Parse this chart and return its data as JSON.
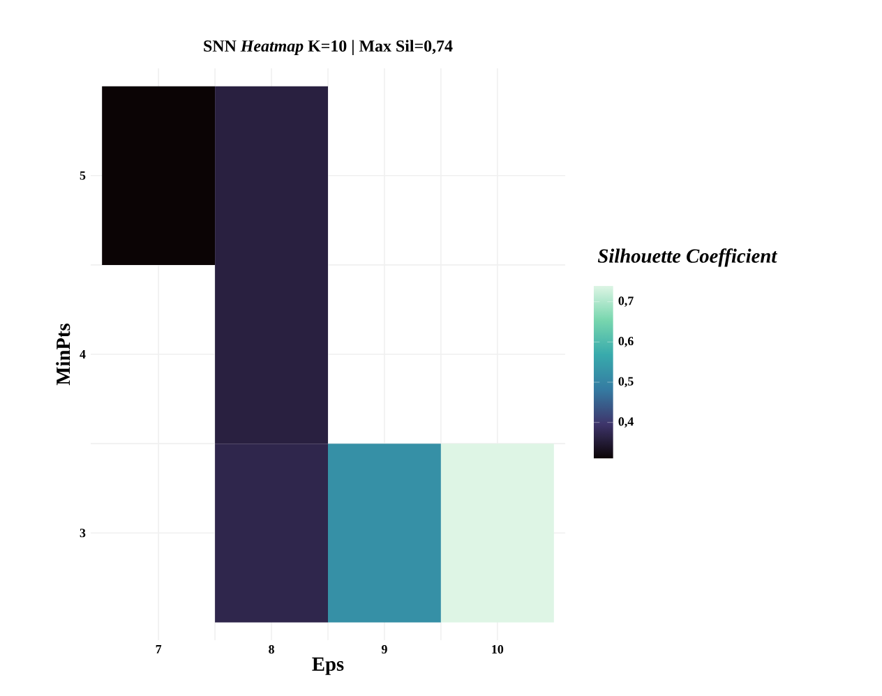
{
  "chart_data": {
    "type": "heatmap",
    "title": "SNN *Heatmap* K=10 | Max Sil=0,74",
    "xlabel": "Eps",
    "ylabel": "MinPts",
    "clabel": "Silhouette Coefficient",
    "categories": [
      "7",
      "8",
      "9",
      "10"
    ],
    "y_categories": [
      "5",
      "4",
      "3"
    ],
    "cells": [
      [
        0.31,
        0.36,
        null,
        null
      ],
      [
        null,
        0.36,
        null,
        null
      ],
      [
        null,
        0.37,
        0.52,
        0.74
      ]
    ],
    "clim": [
      0.31,
      0.74
    ],
    "cticks": [
      {
        "value": 0.4,
        "label": "0,4"
      },
      {
        "value": 0.5,
        "label": "0,5"
      },
      {
        "value": 0.6,
        "label": "0,6"
      },
      {
        "value": 0.7,
        "label": "0,7"
      }
    ],
    "grid": true
  }
}
